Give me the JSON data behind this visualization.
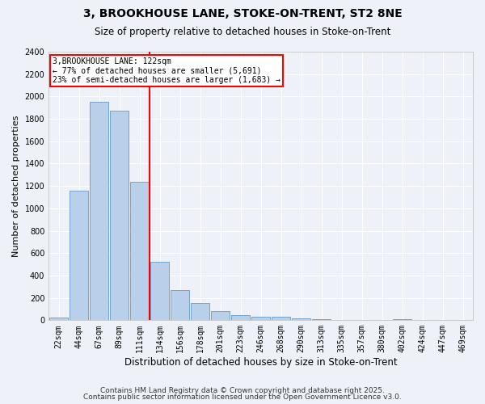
{
  "title": "3, BROOKHOUSE LANE, STOKE-ON-TRENT, ST2 8NE",
  "subtitle": "Size of property relative to detached houses in Stoke-on-Trent",
  "xlabel": "Distribution of detached houses by size in Stoke-on-Trent",
  "ylabel": "Number of detached properties",
  "bin_labels": [
    "22sqm",
    "44sqm",
    "67sqm",
    "89sqm",
    "111sqm",
    "134sqm",
    "156sqm",
    "178sqm",
    "201sqm",
    "223sqm",
    "246sqm",
    "268sqm",
    "290sqm",
    "313sqm",
    "335sqm",
    "357sqm",
    "380sqm",
    "402sqm",
    "424sqm",
    "447sqm",
    "469sqm"
  ],
  "bar_values": [
    25,
    1155,
    1950,
    1870,
    1240,
    520,
    270,
    155,
    85,
    45,
    32,
    30,
    15,
    8,
    5,
    3,
    2,
    10,
    1,
    1,
    0
  ],
  "bar_color": "#b8d0ea",
  "bar_edge_color": "#6699cc",
  "vline_x_index": 5,
  "vline_color": "red",
  "annotation_title": "3,BROOKHOUSE LANE: 122sqm",
  "annotation_line1": "← 77% of detached houses are smaller (5,691)",
  "annotation_line2": "23% of semi-detached houses are larger (1,683) →",
  "annotation_box_color": "white",
  "annotation_box_edge": "red",
  "ylim": [
    0,
    2400
  ],
  "yticks": [
    0,
    200,
    400,
    600,
    800,
    1000,
    1200,
    1400,
    1600,
    1800,
    2000,
    2200,
    2400
  ],
  "footer1": "Contains HM Land Registry data © Crown copyright and database right 2025.",
  "footer2": "Contains public sector information licensed under the Open Government Licence v3.0.",
  "background_color": "#eef2f8",
  "grid_color": "white",
  "title_fontsize": 10,
  "subtitle_fontsize": 8.5,
  "ylabel_fontsize": 8,
  "xlabel_fontsize": 8.5,
  "tick_fontsize": 7,
  "footer_fontsize": 6.5
}
